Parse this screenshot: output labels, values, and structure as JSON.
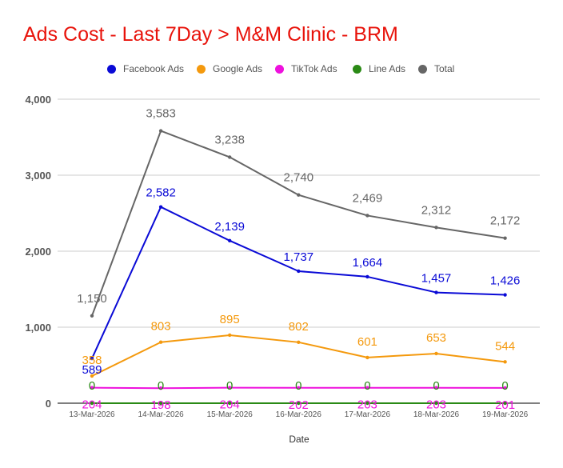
{
  "title": "Ads Cost - Last 7Day > M&M Clinic - BRM",
  "chart_data": {
    "type": "line",
    "title": "Ads Cost - Last 7Day > M&M Clinic - BRM",
    "xlabel": "Date",
    "ylabel": "",
    "ylim": [
      0,
      4000
    ],
    "yticks": [
      0,
      1000,
      2000,
      3000,
      4000
    ],
    "ytick_labels": [
      "0",
      "1,000",
      "2,000",
      "3,000",
      "4,000"
    ],
    "grid": true,
    "legend_position": "top",
    "categories": [
      "13-Mar-2026",
      "14-Mar-2026",
      "15-Mar-2026",
      "16-Mar-2026",
      "17-Mar-2026",
      "18-Mar-2026",
      "19-Mar-2026"
    ],
    "series": [
      {
        "name": "Facebook Ads",
        "color": "#0a0ad6",
        "values": [
          589,
          2582,
          2139,
          1737,
          1664,
          1457,
          1426
        ],
        "labels": [
          "589",
          "2,582",
          "2,139",
          "1,737",
          "1,664",
          "1,457",
          "1,426"
        ]
      },
      {
        "name": "Google Ads",
        "color": "#f4990d",
        "values": [
          358,
          803,
          895,
          802,
          601,
          653,
          544
        ],
        "labels": [
          "358",
          "803",
          "895",
          "802",
          "601",
          "653",
          "544"
        ]
      },
      {
        "name": "TikTok Ads",
        "color": "#ee11dd",
        "values": [
          204,
          198,
          204,
          202,
          203,
          203,
          201
        ],
        "labels": [
          "204",
          "198",
          "204",
          "202",
          "203",
          "203",
          "201"
        ]
      },
      {
        "name": "Line Ads",
        "color": "#2a8a15",
        "values": [
          0,
          0,
          0,
          0,
          0,
          0,
          0
        ],
        "labels": [
          "0",
          "0",
          "0",
          "0",
          "0",
          "0",
          "0"
        ]
      },
      {
        "name": "Total",
        "color": "#666666",
        "values": [
          1150,
          3583,
          3238,
          2740,
          2469,
          2312,
          2172
        ],
        "labels": [
          "1,150",
          "3,583",
          "3,238",
          "2,740",
          "2,469",
          "2,312",
          "2,172"
        ]
      }
    ]
  }
}
